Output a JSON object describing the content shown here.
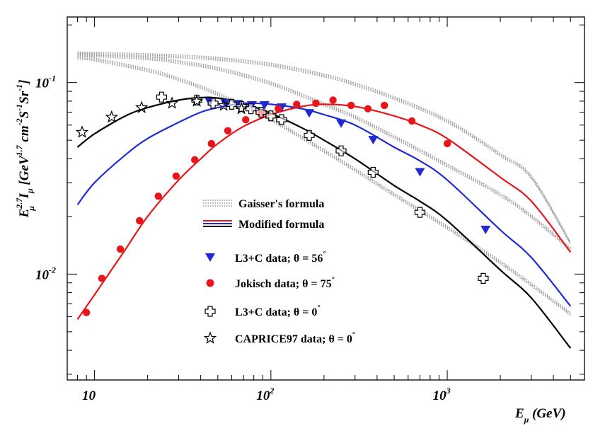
{
  "chart_data": {
    "type": "line+scatter",
    "xscale": "log",
    "yscale": "log",
    "xlim": [
      7,
      6000
    ],
    "ylim": [
      0.0028,
      0.22
    ],
    "xlabel": "E_μ (GeV)",
    "ylabel": "E_μ^2.7 I_μ [GeV^1.7 cm^-2 S^-1 Sr^-1]",
    "x_ticks": [
      {
        "value": 10,
        "base": "10",
        "exp": ""
      },
      {
        "value": 100,
        "base": "10",
        "exp": "2"
      },
      {
        "value": 1000,
        "base": "10",
        "exp": "3"
      }
    ],
    "y_ticks": [
      {
        "value": 0.1,
        "base": "10",
        "exp": "-1"
      },
      {
        "value": 0.01,
        "base": "10",
        "exp": "-2"
      }
    ],
    "ylabel_parts": {
      "E": "E",
      "E_sup": "2.7",
      "E_sub": "μ",
      "I": "I",
      "I_sub": "μ",
      "open": " [GeV",
      "gev_exp": "1.7",
      "cm": " cm",
      "cm_exp": "-2",
      "s": "S",
      "s_exp": "-1",
      "sr": "Sr",
      "sr_exp": "-1",
      "close": "]"
    },
    "xlabel_parts": {
      "E": "E",
      "sub": "μ",
      "rest": " (GeV)"
    },
    "legend": {
      "gaisser": "Gaisser's formula",
      "modified": "Modified formula",
      "l3c56": "L3+C data; θ = 56",
      "jokisch": "Jokisch data; θ = 75",
      "l3c0": "L3+C data; θ = 0",
      "caprice": "CAPRICE97 data; θ = 0",
      "degree": "°"
    },
    "lines": [
      {
        "name": "Gaisser's formula; θ = 0°",
        "style": "dotted",
        "color": "#9a9a9a",
        "x": [
          8,
          10,
          20,
          30,
          50,
          100,
          200,
          300,
          500,
          1000,
          2000,
          3000,
          5000
        ],
        "y": [
          0.135,
          0.132,
          0.116,
          0.104,
          0.087,
          0.064,
          0.044,
          0.035,
          0.026,
          0.0175,
          0.0115,
          0.0088,
          0.0062
        ]
      },
      {
        "name": "Gaisser's formula; θ = 56°",
        "style": "dotted",
        "color": "#9a9a9a",
        "x": [
          8,
          10,
          20,
          30,
          50,
          100,
          200,
          300,
          500,
          1000,
          2000,
          3000,
          5000
        ],
        "y": [
          0.14,
          0.139,
          0.134,
          0.128,
          0.118,
          0.099,
          0.077,
          0.066,
          0.052,
          0.037,
          0.026,
          0.02,
          0.0135
        ]
      },
      {
        "name": "Gaisser's formula; θ = 75°",
        "style": "dotted",
        "color": "#9a9a9a",
        "x": [
          8,
          10,
          20,
          30,
          50,
          100,
          200,
          300,
          500,
          1000,
          2000,
          3000,
          5000
        ],
        "y": [
          0.142,
          0.141,
          0.139,
          0.137,
          0.133,
          0.124,
          0.109,
          0.098,
          0.083,
          0.063,
          0.042,
          0.032,
          0.0145
        ]
      },
      {
        "name": "Modified formula; θ = 0°",
        "style": "solid",
        "color": "#000000",
        "x": [
          8,
          10,
          15,
          20,
          30,
          40,
          50,
          70,
          100,
          150,
          200,
          300,
          500,
          700,
          1000,
          2000,
          3000,
          5000
        ],
        "y": [
          0.046,
          0.054,
          0.067,
          0.074,
          0.081,
          0.0835,
          0.083,
          0.078,
          0.069,
          0.058,
          0.05,
          0.04,
          0.029,
          0.024,
          0.019,
          0.0105,
          0.0075,
          0.0041
        ]
      },
      {
        "name": "Modified formula; θ = 56°",
        "style": "solid",
        "color": "#1f2ad6",
        "x": [
          8,
          10,
          15,
          20,
          30,
          40,
          50,
          70,
          100,
          150,
          200,
          300,
          500,
          700,
          1000,
          2000,
          3000,
          5000
        ],
        "y": [
          0.023,
          0.03,
          0.042,
          0.051,
          0.062,
          0.07,
          0.074,
          0.078,
          0.077,
          0.073,
          0.068,
          0.06,
          0.046,
          0.039,
          0.031,
          0.017,
          0.0122,
          0.0068
        ]
      },
      {
        "name": "Modified formula; θ = 75°",
        "style": "solid",
        "color": "#e8161b",
        "x": [
          8,
          10,
          15,
          20,
          30,
          40,
          50,
          70,
          100,
          150,
          200,
          300,
          500,
          700,
          1000,
          2000,
          3000,
          5000
        ],
        "y": [
          0.0058,
          0.0078,
          0.0135,
          0.02,
          0.031,
          0.04,
          0.048,
          0.059,
          0.068,
          0.075,
          0.077,
          0.075,
          0.067,
          0.06,
          0.051,
          0.032,
          0.024,
          0.013
        ]
      }
    ],
    "series": [
      {
        "name": "L3+C data; θ = 56°",
        "marker": "triangle-down",
        "color": "#1f2ad6",
        "x": [
          45,
          55,
          65,
          78,
          92,
          115,
          165,
          250,
          380,
          700,
          1650
        ],
        "y": [
          0.079,
          0.078,
          0.077,
          0.076,
          0.076,
          0.074,
          0.069,
          0.061,
          0.05,
          0.034,
          0.017
        ]
      },
      {
        "name": "Jokisch data; θ = 75°",
        "marker": "circle",
        "color": "#e8161b",
        "x": [
          9,
          11,
          14,
          18,
          23,
          29,
          37,
          46,
          57,
          72,
          88,
          110,
          140,
          180,
          225,
          285,
          355,
          440,
          630,
          1000
        ],
        "y": [
          0.0063,
          0.0095,
          0.0135,
          0.019,
          0.0255,
          0.0325,
          0.0395,
          0.048,
          0.056,
          0.064,
          0.069,
          0.073,
          0.077,
          0.078,
          0.081,
          0.076,
          0.073,
          0.076,
          0.063,
          0.048
        ]
      },
      {
        "name": "L3+C data; θ = 0°",
        "marker": "open-cross",
        "color": "#000000",
        "x": [
          24,
          38,
          47,
          60,
          68,
          77,
          88,
          100,
          115,
          165,
          250,
          380,
          700,
          1600
        ],
        "y": [
          0.084,
          0.081,
          0.078,
          0.077,
          0.075,
          0.073,
          0.07,
          0.067,
          0.064,
          0.053,
          0.044,
          0.034,
          0.021,
          0.0095
        ]
      },
      {
        "name": "CAPRICE97 data; θ = 0°",
        "marker": "open-star",
        "color": "#000000",
        "x": [
          8.5,
          12.5,
          18.5,
          27.5,
          38,
          54,
          68
        ],
        "y": [
          0.055,
          0.066,
          0.074,
          0.078,
          0.08,
          0.076,
          0.073
        ]
      }
    ]
  }
}
